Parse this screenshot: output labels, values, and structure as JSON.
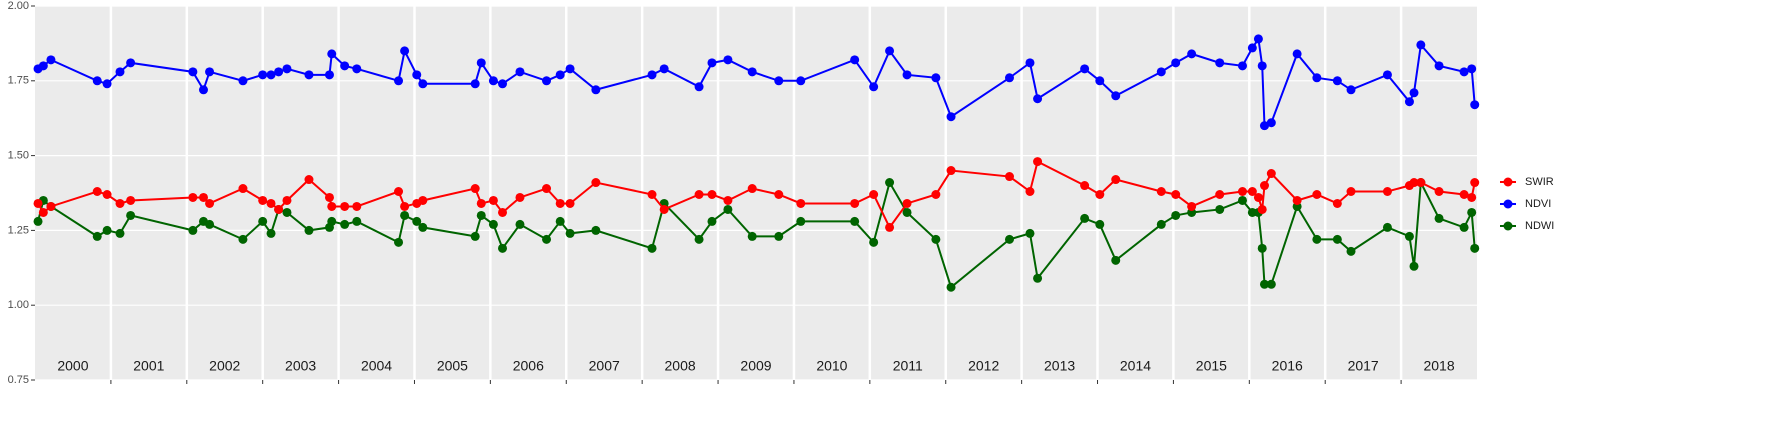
{
  "chart_data": {
    "type": "line",
    "year_labels": [
      "2000",
      "2001",
      "2002",
      "2003",
      "2004",
      "2005",
      "2006",
      "2007",
      "2008",
      "2009",
      "2010",
      "2011",
      "2012",
      "2013",
      "2014",
      "2015",
      "2016",
      "2017",
      "2018"
    ],
    "x": [
      2000.04,
      2000.11,
      2000.21,
      2000.82,
      2000.95,
      2001.12,
      2001.26,
      2002.08,
      2002.22,
      2002.3,
      2002.74,
      2003.0,
      2003.11,
      2003.21,
      2003.32,
      2003.61,
      2003.88,
      2003.91,
      2004.08,
      2004.24,
      2004.79,
      2004.87,
      2005.03,
      2005.11,
      2005.8,
      2005.88,
      2006.04,
      2006.16,
      2006.39,
      2006.74,
      2006.92,
      2007.05,
      2007.39,
      2008.13,
      2008.29,
      2008.75,
      2008.92,
      2009.13,
      2009.45,
      2009.8,
      2010.09,
      2010.8,
      2011.05,
      2011.26,
      2011.49,
      2011.87,
      2012.07,
      2012.84,
      2013.11,
      2013.21,
      2013.83,
      2014.03,
      2014.24,
      2014.84,
      2015.03,
      2015.24,
      2015.61,
      2015.91,
      2016.04,
      2016.12,
      2016.17,
      2016.2,
      2016.29,
      2016.63,
      2016.89,
      2017.16,
      2017.34,
      2017.82,
      2018.11,
      2018.17,
      2018.26,
      2018.5,
      2018.83,
      2018.93,
      2018.97
    ],
    "series": [
      {
        "name": "SWIR",
        "color": "#ff0000",
        "values": [
          1.34,
          1.31,
          1.33,
          1.38,
          1.37,
          1.34,
          1.35,
          1.36,
          1.36,
          1.34,
          1.39,
          1.35,
          1.34,
          1.32,
          1.35,
          1.42,
          1.36,
          1.33,
          1.33,
          1.33,
          1.38,
          1.33,
          1.34,
          1.35,
          1.39,
          1.34,
          1.35,
          1.31,
          1.36,
          1.39,
          1.34,
          1.34,
          1.41,
          1.37,
          1.32,
          1.37,
          1.37,
          1.35,
          1.39,
          1.37,
          1.34,
          1.34,
          1.37,
          1.26,
          1.34,
          1.37,
          1.45,
          1.43,
          1.38,
          1.48,
          1.4,
          1.37,
          1.42,
          1.38,
          1.37,
          1.33,
          1.37,
          1.38,
          1.38,
          1.36,
          1.32,
          1.4,
          1.44,
          1.35,
          1.37,
          1.34,
          1.38,
          1.38,
          1.4,
          1.41,
          1.41,
          1.38,
          1.37,
          1.36,
          1.41
        ]
      },
      {
        "name": "NDVI",
        "color": "#0000ff",
        "values": [
          1.79,
          1.8,
          1.82,
          1.75,
          1.74,
          1.78,
          1.81,
          1.78,
          1.72,
          1.78,
          1.75,
          1.77,
          1.77,
          1.78,
          1.79,
          1.77,
          1.77,
          1.84,
          1.8,
          1.79,
          1.75,
          1.85,
          1.77,
          1.74,
          1.74,
          1.81,
          1.75,
          1.74,
          1.78,
          1.75,
          1.77,
          1.79,
          1.72,
          1.77,
          1.79,
          1.73,
          1.81,
          1.82,
          1.78,
          1.75,
          1.75,
          1.82,
          1.73,
          1.85,
          1.77,
          1.76,
          1.63,
          1.76,
          1.81,
          1.69,
          1.79,
          1.75,
          1.7,
          1.78,
          1.81,
          1.84,
          1.81,
          1.8,
          1.86,
          1.89,
          1.8,
          1.6,
          1.61,
          1.84,
          1.76,
          1.75,
          1.72,
          1.77,
          1.68,
          1.71,
          1.87,
          1.8,
          1.78,
          1.79,
          1.67
        ]
      },
      {
        "name": "NDWI",
        "color": "#006400",
        "values": [
          1.28,
          1.35,
          1.33,
          1.23,
          1.25,
          1.24,
          1.3,
          1.25,
          1.28,
          1.27,
          1.22,
          1.28,
          1.24,
          1.32,
          1.31,
          1.25,
          1.26,
          1.28,
          1.27,
          1.28,
          1.21,
          1.3,
          1.28,
          1.26,
          1.23,
          1.3,
          1.27,
          1.19,
          1.27,
          1.22,
          1.28,
          1.24,
          1.25,
          1.19,
          1.34,
          1.22,
          1.28,
          1.32,
          1.23,
          1.23,
          1.28,
          1.28,
          1.21,
          1.41,
          1.31,
          1.22,
          1.06,
          1.22,
          1.24,
          1.09,
          1.29,
          1.27,
          1.15,
          1.27,
          1.3,
          1.31,
          1.32,
          1.35,
          1.31,
          1.31,
          1.19,
          1.07,
          1.07,
          1.33,
          1.22,
          1.22,
          1.18,
          1.26,
          1.23,
          1.13,
          1.41,
          1.29,
          1.26,
          1.31,
          1.19
        ]
      }
    ],
    "xlim": [
      2000,
      2019
    ],
    "xticks": [
      2001,
      2002,
      2003,
      2004,
      2005,
      2006,
      2007,
      2008,
      2009,
      2010,
      2011,
      2012,
      2013,
      2014,
      2015,
      2016,
      2017,
      2018
    ],
    "ylim": [
      0.75,
      2.0
    ],
    "yticks": [
      {
        "value": 0.75,
        "label": "0.75"
      },
      {
        "value": 1.0,
        "label": "1.00"
      },
      {
        "value": 1.25,
        "label": "1.25"
      },
      {
        "value": 1.5,
        "label": "1.50"
      },
      {
        "value": 1.75,
        "label": "1.75"
      },
      {
        "value": 2.0,
        "label": "2.00"
      }
    ],
    "grid": true,
    "legend": "right"
  }
}
